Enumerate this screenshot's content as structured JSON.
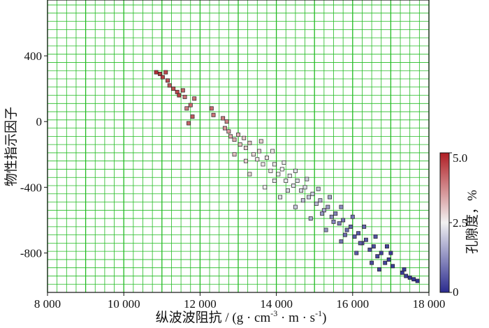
{
  "chart_data": {
    "type": "scatter",
    "xlabel": "纵波波阻抗 / (g · cm",
    "xlabel_sup1": "-3",
    "xlabel_mid": " · m · s",
    "xlabel_sup2": "-1",
    "xlabel_end": ")",
    "ylabel": "物性指示因子",
    "xlim": [
      8000,
      18000
    ],
    "ylim": [
      -1040,
      740
    ],
    "x_ticks": [
      {
        "value": 8000,
        "label": "8 000"
      },
      {
        "value": 10000,
        "label": "10 000"
      },
      {
        "value": 12000,
        "label": "12 000"
      },
      {
        "value": 14000,
        "label": "14 000"
      },
      {
        "value": 16000,
        "label": "16 000"
      },
      {
        "value": 18000,
        "label": "18 000"
      }
    ],
    "y_ticks": [
      {
        "value": 400,
        "label": "400"
      },
      {
        "value": 0,
        "label": "0"
      },
      {
        "value": -400,
        "label": "-400"
      },
      {
        "value": -800,
        "label": "-800"
      }
    ],
    "grid": true,
    "grid_color": "#22bb22",
    "colorbar": {
      "label": "孔隙度，%",
      "range": [
        0,
        5.0
      ],
      "ticks": [
        {
          "value": 5.0,
          "label": "5.0"
        },
        {
          "value": 2.5,
          "label": "2.5"
        },
        {
          "value": 0,
          "label": "0"
        }
      ],
      "colors": {
        "low": "#2b2b8f",
        "mid": "#f2f2f2",
        "high": "#b01e24"
      }
    },
    "points": [
      {
        "x": 10850,
        "y": 300,
        "c": 4.8
      },
      {
        "x": 10950,
        "y": 290,
        "c": 4.7
      },
      {
        "x": 11020,
        "y": 270,
        "c": 4.6
      },
      {
        "x": 11100,
        "y": 300,
        "c": 4.5
      },
      {
        "x": 11150,
        "y": 250,
        "c": 4.4
      },
      {
        "x": 11200,
        "y": 220,
        "c": 4.3
      },
      {
        "x": 11300,
        "y": 200,
        "c": 4.4
      },
      {
        "x": 11400,
        "y": 180,
        "c": 4.5
      },
      {
        "x": 11450,
        "y": 160,
        "c": 4.6
      },
      {
        "x": 11550,
        "y": 190,
        "c": 4.2
      },
      {
        "x": 11600,
        "y": 150,
        "c": 4.0
      },
      {
        "x": 11650,
        "y": 80,
        "c": 3.9
      },
      {
        "x": 11750,
        "y": 100,
        "c": 4.1
      },
      {
        "x": 11800,
        "y": 30,
        "c": 4.3
      },
      {
        "x": 11850,
        "y": 140,
        "c": 4.0
      },
      {
        "x": 11700,
        "y": -10,
        "c": 4.2
      },
      {
        "x": 12300,
        "y": 80,
        "c": 4.1
      },
      {
        "x": 12350,
        "y": 40,
        "c": 4.0
      },
      {
        "x": 12600,
        "y": 20,
        "c": 3.9
      },
      {
        "x": 12700,
        "y": 0,
        "c": 3.8
      },
      {
        "x": 12650,
        "y": -40,
        "c": 3.6
      },
      {
        "x": 12750,
        "y": -60,
        "c": 3.5
      },
      {
        "x": 12800,
        "y": -90,
        "c": 3.4
      },
      {
        "x": 12900,
        "y": -110,
        "c": 3.3
      },
      {
        "x": 13000,
        "y": -80,
        "c": 3.2
      },
      {
        "x": 13050,
        "y": -140,
        "c": 3.1
      },
      {
        "x": 13150,
        "y": -100,
        "c": 3.0
      },
      {
        "x": 13200,
        "y": -160,
        "c": 2.9
      },
      {
        "x": 13300,
        "y": -130,
        "c": 3.0
      },
      {
        "x": 13400,
        "y": -200,
        "c": 2.8
      },
      {
        "x": 13500,
        "y": -230,
        "c": 2.7
      },
      {
        "x": 13550,
        "y": -180,
        "c": 2.8
      },
      {
        "x": 13650,
        "y": -260,
        "c": 2.6
      },
      {
        "x": 13750,
        "y": -220,
        "c": 2.7
      },
      {
        "x": 13850,
        "y": -300,
        "c": 2.6
      },
      {
        "x": 13950,
        "y": -260,
        "c": 2.6
      },
      {
        "x": 14050,
        "y": -320,
        "c": 2.5
      },
      {
        "x": 14150,
        "y": -290,
        "c": 2.5
      },
      {
        "x": 14250,
        "y": -360,
        "c": 2.4
      },
      {
        "x": 14350,
        "y": -330,
        "c": 2.4
      },
      {
        "x": 14450,
        "y": -390,
        "c": 2.3
      },
      {
        "x": 14550,
        "y": -360,
        "c": 2.3
      },
      {
        "x": 14650,
        "y": -420,
        "c": 2.2
      },
      {
        "x": 14750,
        "y": -400,
        "c": 2.2
      },
      {
        "x": 14850,
        "y": -460,
        "c": 2.0
      },
      {
        "x": 14950,
        "y": -440,
        "c": 2.0
      },
      {
        "x": 15050,
        "y": -500,
        "c": 1.8
      },
      {
        "x": 15150,
        "y": -480,
        "c": 1.7
      },
      {
        "x": 15250,
        "y": -540,
        "c": 1.5
      },
      {
        "x": 15350,
        "y": -520,
        "c": 1.4
      },
      {
        "x": 15450,
        "y": -580,
        "c": 1.2
      },
      {
        "x": 15550,
        "y": -560,
        "c": 1.1
      },
      {
        "x": 15650,
        "y": -620,
        "c": 1.0
      },
      {
        "x": 15750,
        "y": -600,
        "c": 0.9
      },
      {
        "x": 15850,
        "y": -660,
        "c": 0.8
      },
      {
        "x": 15950,
        "y": -640,
        "c": 0.7
      },
      {
        "x": 16050,
        "y": -700,
        "c": 0.6
      },
      {
        "x": 16150,
        "y": -680,
        "c": 0.6
      },
      {
        "x": 16250,
        "y": -740,
        "c": 0.5
      },
      {
        "x": 16350,
        "y": -720,
        "c": 0.5
      },
      {
        "x": 16450,
        "y": -780,
        "c": 0.4
      },
      {
        "x": 16550,
        "y": -760,
        "c": 0.4
      },
      {
        "x": 16650,
        "y": -820,
        "c": 0.3
      },
      {
        "x": 16750,
        "y": -800,
        "c": 0.3
      },
      {
        "x": 16850,
        "y": -860,
        "c": 0.3
      },
      {
        "x": 16950,
        "y": -840,
        "c": 0.2
      },
      {
        "x": 17300,
        "y": -920,
        "c": 0.2
      },
      {
        "x": 17400,
        "y": -940,
        "c": 0.2
      },
      {
        "x": 17500,
        "y": -950,
        "c": 0.1
      },
      {
        "x": 17600,
        "y": -960,
        "c": 0.1
      },
      {
        "x": 17700,
        "y": -970,
        "c": 0.1
      },
      {
        "x": 17350,
        "y": -900,
        "c": 0.2
      },
      {
        "x": 17050,
        "y": -880,
        "c": 0.2
      },
      {
        "x": 13600,
        "y": -120,
        "c": 2.9
      },
      {
        "x": 13900,
        "y": -180,
        "c": 2.6
      },
      {
        "x": 14200,
        "y": -250,
        "c": 2.5
      },
      {
        "x": 14500,
        "y": -300,
        "c": 2.3
      },
      {
        "x": 14800,
        "y": -350,
        "c": 2.1
      },
      {
        "x": 15100,
        "y": -410,
        "c": 1.9
      },
      {
        "x": 15400,
        "y": -460,
        "c": 1.6
      },
      {
        "x": 15700,
        "y": -520,
        "c": 1.2
      },
      {
        "x": 16000,
        "y": -580,
        "c": 0.9
      },
      {
        "x": 16300,
        "y": -640,
        "c": 0.7
      },
      {
        "x": 16600,
        "y": -700,
        "c": 0.5
      },
      {
        "x": 13300,
        "y": -320,
        "c": 2.8
      },
      {
        "x": 13700,
        "y": -400,
        "c": 2.5
      },
      {
        "x": 14100,
        "y": -460,
        "c": 2.3
      },
      {
        "x": 14500,
        "y": -520,
        "c": 2.0
      },
      {
        "x": 14900,
        "y": -590,
        "c": 1.6
      },
      {
        "x": 15300,
        "y": -660,
        "c": 1.3
      },
      {
        "x": 15700,
        "y": -730,
        "c": 0.9
      },
      {
        "x": 16100,
        "y": -800,
        "c": 0.6
      },
      {
        "x": 16500,
        "y": -860,
        "c": 0.4
      },
      {
        "x": 15500,
        "y": -610,
        "c": 1.1
      },
      {
        "x": 15800,
        "y": -690,
        "c": 0.8
      },
      {
        "x": 16200,
        "y": -740,
        "c": 0.6
      },
      {
        "x": 15200,
        "y": -560,
        "c": 1.4
      },
      {
        "x": 14700,
        "y": -480,
        "c": 1.9
      },
      {
        "x": 14300,
        "y": -420,
        "c": 2.2
      },
      {
        "x": 13950,
        "y": -360,
        "c": 2.4
      },
      {
        "x": 16700,
        "y": -900,
        "c": 0.3
      },
      {
        "x": 16900,
        "y": -760,
        "c": 0.3
      },
      {
        "x": 17000,
        "y": -800,
        "c": 0.2
      },
      {
        "x": 13200,
        "y": -240,
        "c": 2.9
      },
      {
        "x": 12900,
        "y": -200,
        "c": 3.1
      }
    ]
  }
}
